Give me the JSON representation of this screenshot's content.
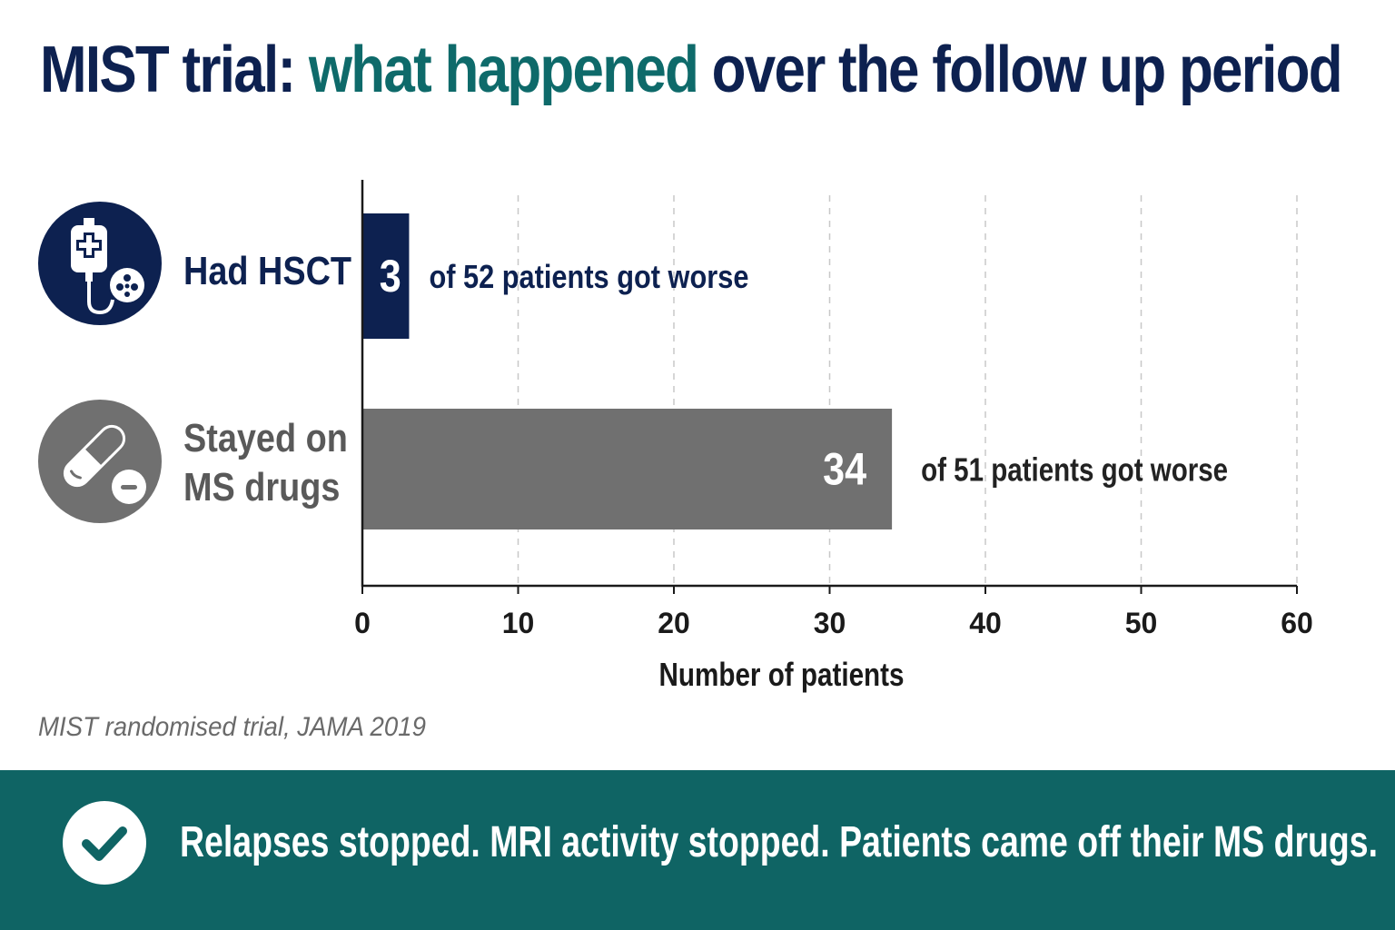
{
  "title": {
    "part1": "MIST trial: ",
    "highlight": "what happened",
    "part2": " over the follow up period"
  },
  "icons": {
    "hsct": "iv-bag-stem-cell-icon",
    "drugs": "pills-icon",
    "check": "checkmark-icon"
  },
  "colors": {
    "navy": "#0d2150",
    "teal": "#0f6464",
    "gray_bar": "#707070"
  },
  "chart_data": {
    "type": "bar",
    "orientation": "horizontal",
    "categories": [
      "Had HSCT",
      "Stayed on MS drugs"
    ],
    "category_lines": [
      [
        "Had HSCT"
      ],
      [
        "Stayed on",
        "MS drugs"
      ]
    ],
    "values": [
      3,
      34
    ],
    "value_labels": [
      "3",
      "34"
    ],
    "annotations": [
      "of 52 patients got worse",
      "of 51 patients got worse"
    ],
    "bar_colors": [
      "#0d2150",
      "#707070"
    ],
    "xlabel": "Number of patients",
    "xlim": [
      0,
      60
    ],
    "xticks": [
      0,
      10,
      20,
      30,
      40,
      50,
      60
    ],
    "grid": true
  },
  "source": "MIST randomised trial, JAMA 2019",
  "footer": {
    "text": "Relapses stopped. MRI activity stopped. Patients came off their MS drugs."
  }
}
